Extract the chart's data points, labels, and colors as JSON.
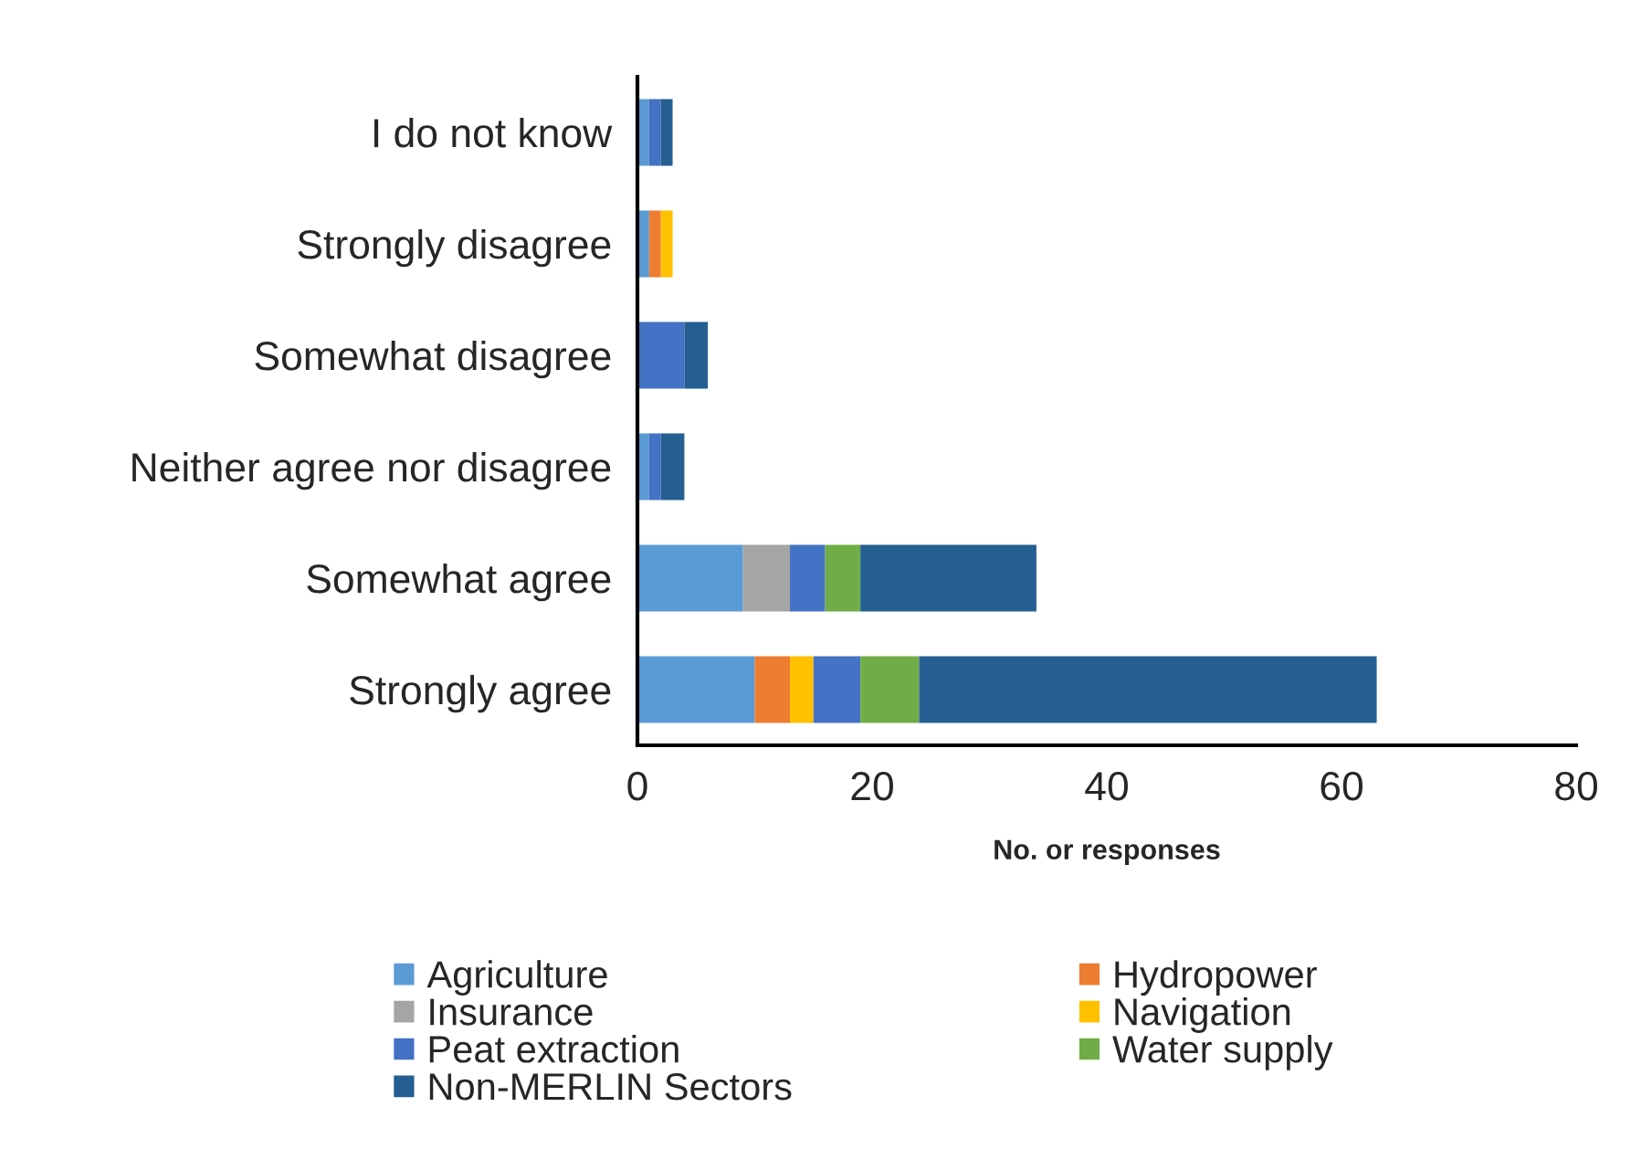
{
  "chart_data": {
    "type": "bar",
    "orientation": "horizontal",
    "stacked": true,
    "xlabel": "No. or responses",
    "categories": [
      "I do not know",
      "Strongly disagree",
      "Somewhat disagree",
      "Neither agree nor disagree",
      "Somewhat agree",
      "Strongly agree"
    ],
    "series": [
      {
        "name": "Agriculture",
        "color": "#5b9bd5",
        "values": [
          1,
          1,
          0,
          1,
          9,
          10
        ]
      },
      {
        "name": "Hydropower",
        "color": "#ed7d31",
        "values": [
          0,
          1,
          0,
          0,
          0,
          3
        ]
      },
      {
        "name": "Insurance",
        "color": "#a5a5a5",
        "values": [
          0,
          0,
          0,
          0,
          4,
          0
        ]
      },
      {
        "name": "Navigation",
        "color": "#ffc000",
        "values": [
          0,
          1,
          0,
          0,
          0,
          2
        ]
      },
      {
        "name": "Peat extraction",
        "color": "#4472c4",
        "values": [
          1,
          0,
          4,
          1,
          3,
          4
        ]
      },
      {
        "name": "Water supply",
        "color": "#70ad47",
        "values": [
          0,
          0,
          0,
          0,
          3,
          5
        ]
      },
      {
        "name": "Non-MERLIN Sectors",
        "color": "#255e91",
        "values": [
          1,
          0,
          2,
          2,
          15,
          39
        ]
      }
    ],
    "xlim": [
      0,
      80
    ],
    "xticks": [
      0,
      20,
      40,
      60,
      80
    ],
    "grid": false,
    "legend": "bottom"
  }
}
